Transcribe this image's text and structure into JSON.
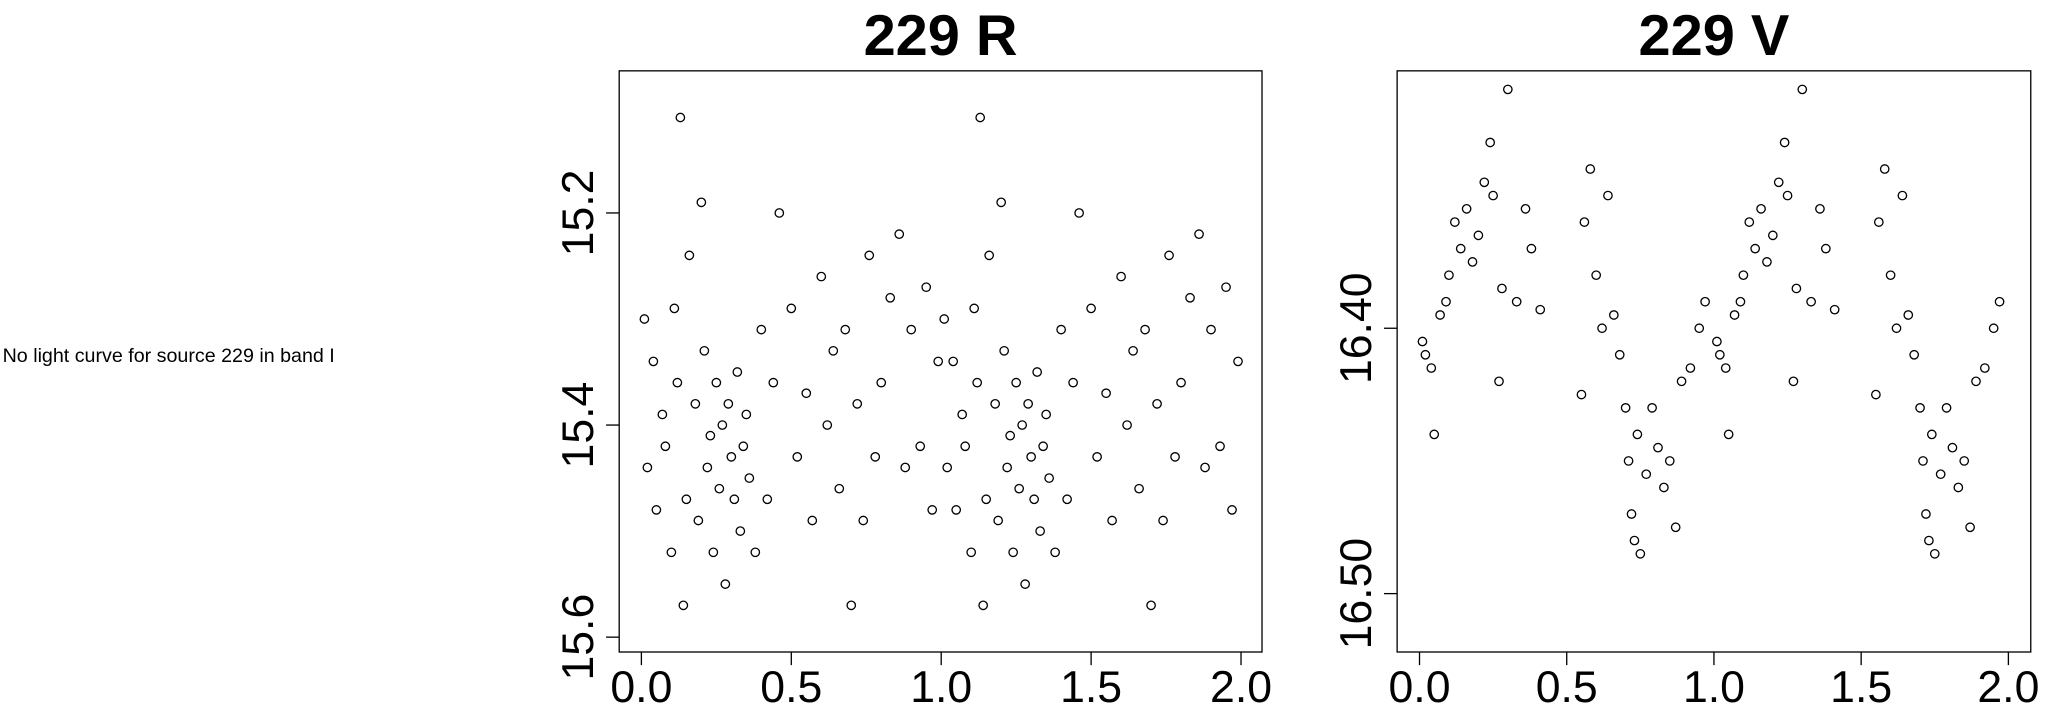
{
  "message": "No light curve for source 229 in band I",
  "chart_data": [
    {
      "type": "scatter",
      "title": "229 R",
      "color": "#000000",
      "xlim": [
        -0.074,
        2.07
      ],
      "ylim": [
        15.614,
        15.066
      ],
      "xticks": [
        {
          "value": 0,
          "label": "0.0"
        },
        0.5,
        {
          "value": 1,
          "label": "1.0"
        },
        1.5,
        {
          "value": 2,
          "label": "2.0"
        }
      ],
      "yticks": [
        15.2,
        15.4,
        15.6
      ],
      "x": [
        0.01,
        0.02,
        0.04,
        0.05,
        0.07,
        0.08,
        0.1,
        0.11,
        0.12,
        0.13,
        0.14,
        0.15,
        0.16,
        0.18,
        0.19,
        0.2,
        0.21,
        0.22,
        0.23,
        0.24,
        0.25,
        0.26,
        0.27,
        0.28,
        0.29,
        0.3,
        0.31,
        0.32,
        0.33,
        0.34,
        0.35,
        0.36,
        0.38,
        0.4,
        0.42,
        0.44,
        0.46,
        0.5,
        0.52,
        0.55,
        0.57,
        0.6,
        0.62,
        0.64,
        0.66,
        0.68,
        0.7,
        0.72,
        0.74,
        0.76,
        0.78,
        0.8,
        0.83,
        0.86,
        0.88,
        0.9,
        0.93,
        0.95,
        0.97,
        0.99,
        1.01,
        1.02,
        1.04,
        1.05,
        1.07,
        1.08,
        1.1,
        1.11,
        1.12,
        1.13,
        1.14,
        1.15,
        1.16,
        1.18,
        1.19,
        1.2,
        1.21,
        1.22,
        1.23,
        1.24,
        1.25,
        1.26,
        1.27,
        1.28,
        1.29,
        1.3,
        1.31,
        1.32,
        1.33,
        1.34,
        1.35,
        1.36,
        1.38,
        1.4,
        1.42,
        1.44,
        1.46,
        1.5,
        1.52,
        1.55,
        1.57,
        1.6,
        1.62,
        1.64,
        1.66,
        1.68,
        1.7,
        1.72,
        1.74,
        1.76,
        1.78,
        1.8,
        1.83,
        1.86,
        1.88,
        1.9,
        1.93,
        1.95,
        1.97,
        1.99
      ],
      "values": [
        15.3,
        15.44,
        15.34,
        15.48,
        15.39,
        15.42,
        15.52,
        15.29,
        15.36,
        15.11,
        15.57,
        15.47,
        15.24,
        15.38,
        15.49,
        15.19,
        15.33,
        15.44,
        15.41,
        15.52,
        15.36,
        15.46,
        15.4,
        15.55,
        15.38,
        15.43,
        15.47,
        15.35,
        15.5,
        15.42,
        15.39,
        15.45,
        15.52,
        15.31,
        15.47,
        15.36,
        15.2,
        15.29,
        15.43,
        15.37,
        15.49,
        15.26,
        15.4,
        15.33,
        15.46,
        15.31,
        15.57,
        15.38,
        15.49,
        15.24,
        15.43,
        15.36,
        15.28,
        15.22,
        15.44,
        15.31,
        15.42,
        15.27,
        15.48,
        15.34,
        15.3,
        15.44,
        15.34,
        15.48,
        15.39,
        15.42,
        15.52,
        15.29,
        15.36,
        15.11,
        15.57,
        15.47,
        15.24,
        15.38,
        15.49,
        15.19,
        15.33,
        15.44,
        15.41,
        15.52,
        15.36,
        15.46,
        15.4,
        15.55,
        15.38,
        15.43,
        15.47,
        15.35,
        15.5,
        15.42,
        15.39,
        15.45,
        15.52,
        15.31,
        15.47,
        15.36,
        15.2,
        15.29,
        15.43,
        15.37,
        15.49,
        15.26,
        15.4,
        15.33,
        15.46,
        15.31,
        15.57,
        15.38,
        15.49,
        15.24,
        15.43,
        15.36,
        15.28,
        15.22,
        15.44,
        15.31,
        15.42,
        15.27,
        15.48,
        15.34
      ]
    },
    {
      "type": "scatter",
      "title": "229 V",
      "color": "#000000",
      "xlim": [
        -0.076,
        2.076
      ],
      "ylim": [
        16.522,
        16.303
      ],
      "xticks": [
        {
          "value": 0,
          "label": "0.0"
        },
        0.5,
        {
          "value": 1,
          "label": "1.0"
        },
        1.5,
        {
          "value": 2,
          "label": "2.0"
        }
      ],
      "yticks": [
        {
          "value": 16.4,
          "label": "16.40"
        },
        {
          "value": 16.5,
          "label": "16.50"
        }
      ],
      "x": [
        0.01,
        0.02,
        0.04,
        0.05,
        0.07,
        0.09,
        0.1,
        0.12,
        0.14,
        0.16,
        0.18,
        0.2,
        0.22,
        0.24,
        0.25,
        0.27,
        0.28,
        0.3,
        0.33,
        0.36,
        0.38,
        0.41,
        0.55,
        0.56,
        0.58,
        0.6,
        0.62,
        0.64,
        0.66,
        0.68,
        0.7,
        0.71,
        0.72,
        0.73,
        0.74,
        0.75,
        0.77,
        0.79,
        0.81,
        0.83,
        0.85,
        0.87,
        0.89,
        0.92,
        0.95,
        0.97,
        1.01,
        1.02,
        1.04,
        1.05,
        1.07,
        1.09,
        1.1,
        1.12,
        1.14,
        1.16,
        1.18,
        1.2,
        1.22,
        1.24,
        1.25,
        1.27,
        1.28,
        1.3,
        1.33,
        1.36,
        1.38,
        1.41,
        1.55,
        1.56,
        1.58,
        1.6,
        1.62,
        1.64,
        1.66,
        1.68,
        1.7,
        1.71,
        1.72,
        1.73,
        1.74,
        1.75,
        1.77,
        1.79,
        1.81,
        1.83,
        1.85,
        1.87,
        1.89,
        1.92,
        1.95,
        1.97
      ],
      "values": [
        16.405,
        16.41,
        16.415,
        16.44,
        16.395,
        16.39,
        16.38,
        16.36,
        16.37,
        16.355,
        16.375,
        16.365,
        16.345,
        16.33,
        16.35,
        16.42,
        16.385,
        16.31,
        16.39,
        16.355,
        16.37,
        16.393,
        16.425,
        16.36,
        16.34,
        16.38,
        16.4,
        16.35,
        16.395,
        16.41,
        16.43,
        16.45,
        16.47,
        16.48,
        16.44,
        16.485,
        16.455,
        16.43,
        16.445,
        16.46,
        16.45,
        16.475,
        16.42,
        16.415,
        16.4,
        16.39,
        16.405,
        16.41,
        16.415,
        16.44,
        16.395,
        16.39,
        16.38,
        16.36,
        16.37,
        16.355,
        16.375,
        16.365,
        16.345,
        16.33,
        16.35,
        16.42,
        16.385,
        16.31,
        16.39,
        16.355,
        16.37,
        16.393,
        16.425,
        16.36,
        16.34,
        16.38,
        16.4,
        16.35,
        16.395,
        16.41,
        16.43,
        16.45,
        16.47,
        16.48,
        16.44,
        16.485,
        16.455,
        16.43,
        16.445,
        16.46,
        16.45,
        16.475,
        16.42,
        16.415,
        16.4,
        16.39
      ]
    }
  ]
}
